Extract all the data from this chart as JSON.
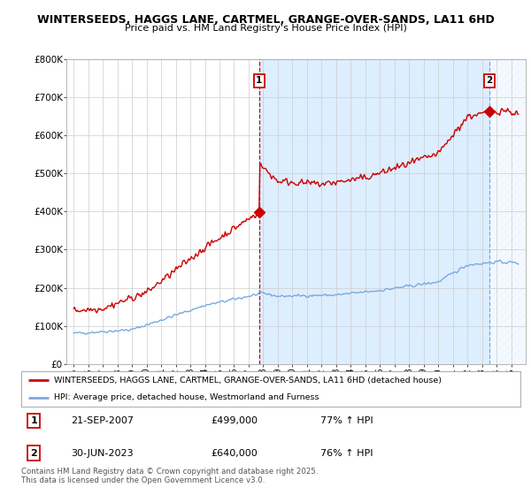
{
  "title1": "WINTERSEEDS, HAGGS LANE, CARTMEL, GRANGE-OVER-SANDS, LA11 6HD",
  "title2": "Price paid vs. HM Land Registry's House Price Index (HPI)",
  "legend_label1": "WINTERSEEDS, HAGGS LANE, CARTMEL, GRANGE-OVER-SANDS, LA11 6HD (detached house)",
  "legend_label2": "HPI: Average price, detached house, Westmorland and Furness",
  "footer": "Contains HM Land Registry data © Crown copyright and database right 2025.\nThis data is licensed under the Open Government Licence v3.0.",
  "sale1_label": "1",
  "sale1_date": "21-SEP-2007",
  "sale1_price": "£499,000",
  "sale1_hpi": "77% ↑ HPI",
  "sale1_year": 2007.72,
  "sale1_value": 499000,
  "sale2_label": "2",
  "sale2_date": "30-JUN-2023",
  "sale2_price": "£640,000",
  "sale2_hpi": "76% ↑ HPI",
  "sale2_year": 2023.5,
  "sale2_value": 640000,
  "line1_color": "#cc0000",
  "line2_color": "#7aaadd",
  "vline1_color": "#cc0000",
  "vline2_color": "#7aaadd",
  "highlight_color": "#ddeeff",
  "marker_box_color": "#cc0000",
  "ylim": [
    0,
    800000
  ],
  "xlim": [
    1994.5,
    2026.0
  ],
  "background_color": "#ffffff",
  "grid_color": "#cccccc"
}
